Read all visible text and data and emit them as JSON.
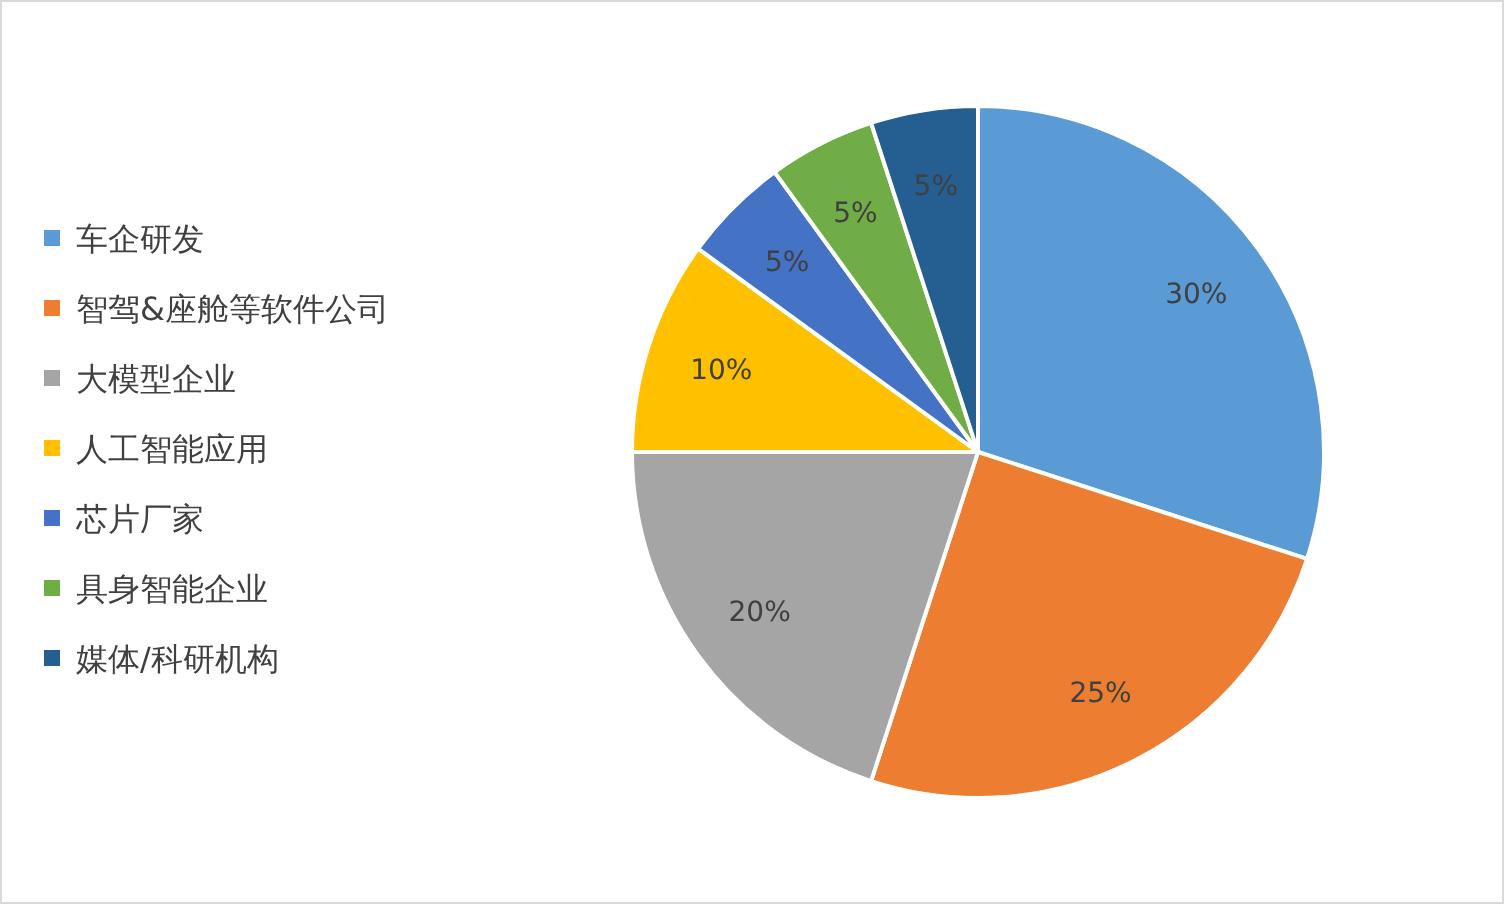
{
  "chart_data": {
    "type": "pie",
    "categories": [
      "车企研发",
      "智驾&座舱等软件公司",
      "大模型企业",
      "人工智能应用",
      "芯片厂家",
      "具身智能企业",
      "媒体/科研机构"
    ],
    "values": [
      30,
      25,
      20,
      10,
      5,
      5,
      5
    ],
    "colors": [
      "#5b9bd5",
      "#ed7d31",
      "#a5a5a5",
      "#ffc000",
      "#4472c4",
      "#70ad47",
      "#255e91"
    ],
    "value_labels": [
      "30%",
      "25%",
      "20%",
      "10%",
      "5%",
      "5%",
      "5%"
    ],
    "legend": "left"
  }
}
